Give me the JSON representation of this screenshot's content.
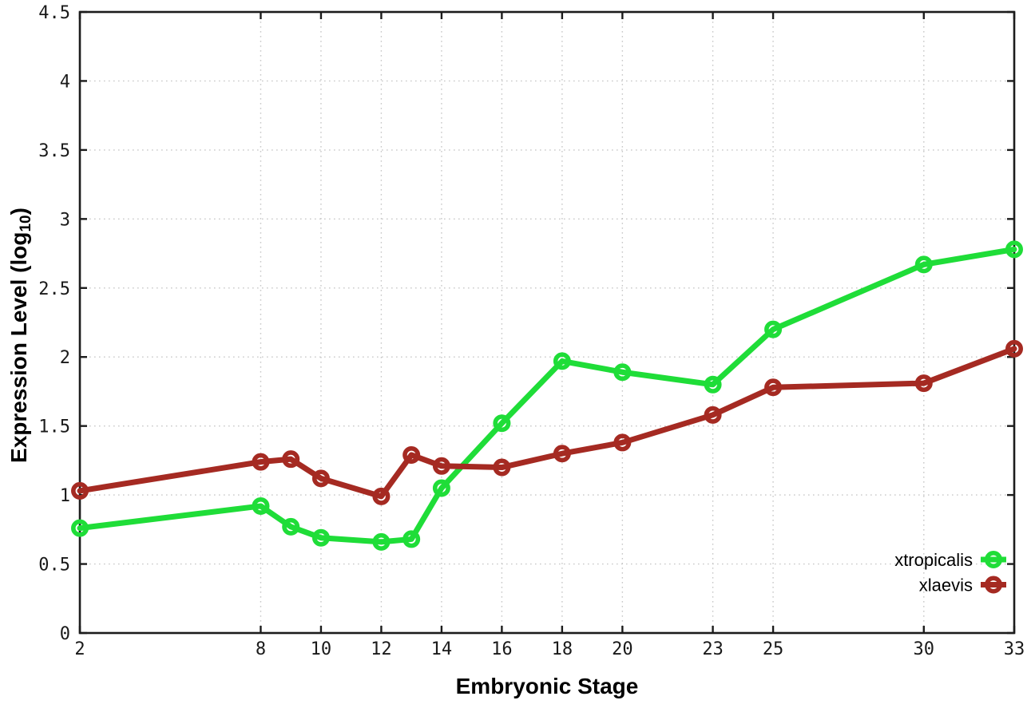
{
  "figure": {
    "background": "#ffffff",
    "border_color": "#1c1c1c",
    "grid_color": "#c8c8c8",
    "tick_color": "#1c1c1c",
    "tick_label_color": "#1a1a1a",
    "legend_text_color": "#000000"
  },
  "chart_data": {
    "type": "line",
    "title": "",
    "xlabel": "Embryonic Stage",
    "ylabel": "Expression Level (log10)",
    "ylabel_text": "Expression Level (log",
    "ylabel_subscript": "10",
    "ylabel_suffix": ")",
    "xlim": [
      2,
      33
    ],
    "ylim": [
      0,
      4.5
    ],
    "x_ticks": [
      2,
      8,
      10,
      12,
      14,
      16,
      18,
      20,
      23,
      25,
      30,
      33
    ],
    "x_tick_labels": [
      "2",
      "8",
      "10",
      "12",
      "14",
      "16",
      "18",
      "20",
      "23",
      "25",
      "30",
      "33"
    ],
    "y_ticks": [
      0,
      0.5,
      1,
      1.5,
      2,
      2.5,
      3,
      3.5,
      4,
      4.5
    ],
    "y_tick_labels": [
      "0",
      "0.5",
      "1",
      "1.5",
      "2",
      "2.5",
      "3",
      "3.5",
      "4",
      "4.5"
    ],
    "grid": true,
    "grid_style": "dotted",
    "legend_position": "inside-bottom-right",
    "x": [
      2,
      8,
      9,
      10,
      12,
      13,
      14,
      16,
      18,
      20,
      23,
      25,
      30,
      33
    ],
    "series": [
      {
        "name": "xtropicalis",
        "color": "#1fdd38",
        "marker": "open-circle",
        "values": [
          0.76,
          0.92,
          0.77,
          0.69,
          0.66,
          0.68,
          1.05,
          1.52,
          1.97,
          1.89,
          1.8,
          2.2,
          2.67,
          2.78
        ]
      },
      {
        "name": "xlaevis",
        "color": "#a52a22",
        "marker": "open-circle",
        "values": [
          1.03,
          1.24,
          1.26,
          1.12,
          0.99,
          1.29,
          1.21,
          1.2,
          1.3,
          1.38,
          1.58,
          1.78,
          1.81,
          2.06
        ]
      }
    ]
  }
}
